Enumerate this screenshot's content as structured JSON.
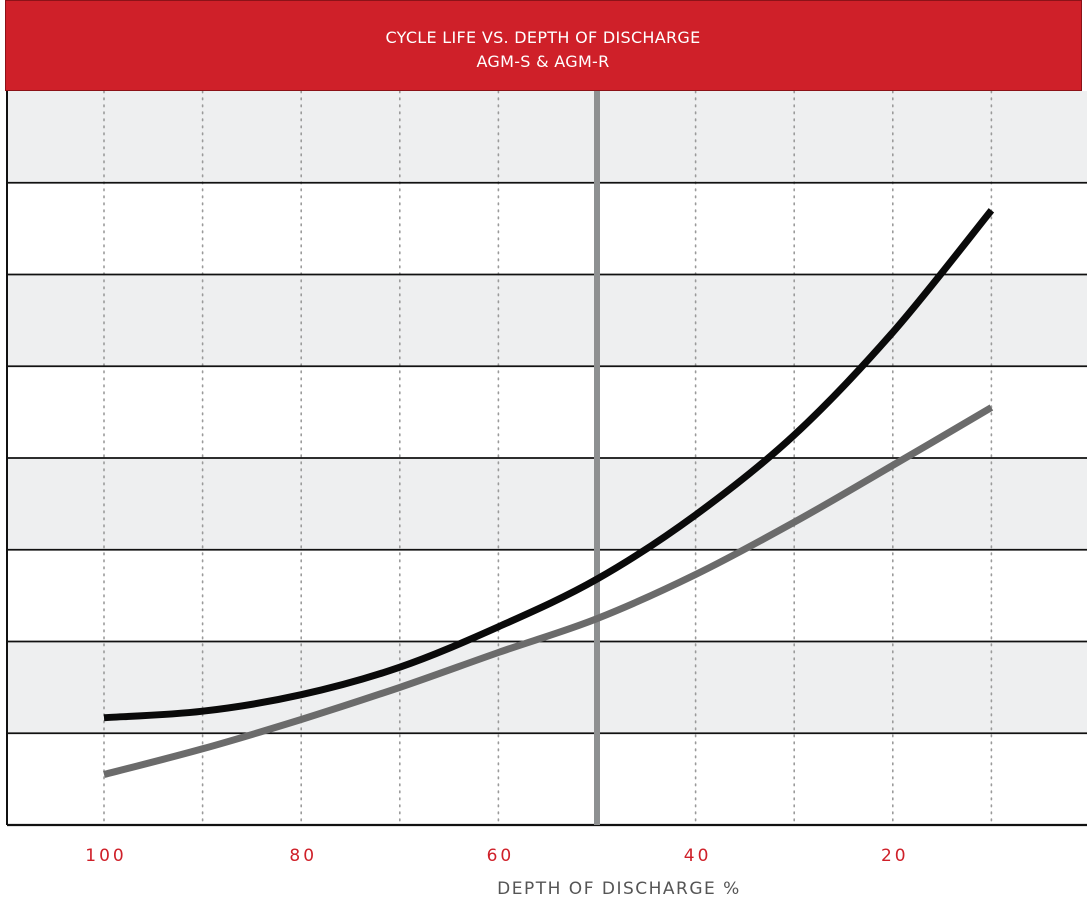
{
  "colors": {
    "title_bar": "#cf2029",
    "title_border": "#8c1218",
    "band_shaded": "#eeeff0",
    "band_white": "#ffffff",
    "hline": "#111111",
    "vgrid": "#9a9a9a",
    "marker": "#8e9091",
    "tick_label": "#cf2029",
    "xlabel": "#555555"
  },
  "chart_data": {
    "type": "line",
    "title": "CYCLE LIFE VS. DEPTH OF DISCHARGE",
    "subtitle": "AGM-S & AGM-R",
    "xlabel": "DEPTH OF DISCHARGE %",
    "ylabel": "",
    "x_reversed": true,
    "xlim": [
      110,
      0
    ],
    "ylim": [
      0,
      8
    ],
    "x_ticks": [
      100,
      80,
      60,
      40,
      20
    ],
    "x_tick_labels": [
      "100",
      "80",
      "60",
      "40",
      "20"
    ],
    "x_minor_grid": [
      100,
      90,
      80,
      70,
      60,
      50,
      40,
      30,
      20,
      10
    ],
    "y_gridlines": [
      0,
      1,
      2,
      3,
      4,
      5,
      6,
      7,
      8
    ],
    "y_tick_labels": [],
    "alternating_bands": true,
    "vertical_marker_x": 50,
    "legend": "none",
    "series": [
      {
        "color": "#0a0a0a",
        "x": [
          100,
          90,
          80,
          70,
          60,
          50,
          40,
          30,
          20,
          10
        ],
        "y": [
          1.17,
          1.24,
          1.42,
          1.72,
          2.16,
          2.68,
          3.38,
          4.25,
          5.37,
          6.7
        ]
      },
      {
        "color": "#6b6b6b",
        "x": [
          100,
          90,
          80,
          70,
          60,
          50,
          40,
          30,
          20,
          10
        ],
        "y": [
          0.55,
          0.83,
          1.15,
          1.5,
          1.88,
          2.25,
          2.73,
          3.3,
          3.92,
          4.55
        ]
      }
    ]
  }
}
